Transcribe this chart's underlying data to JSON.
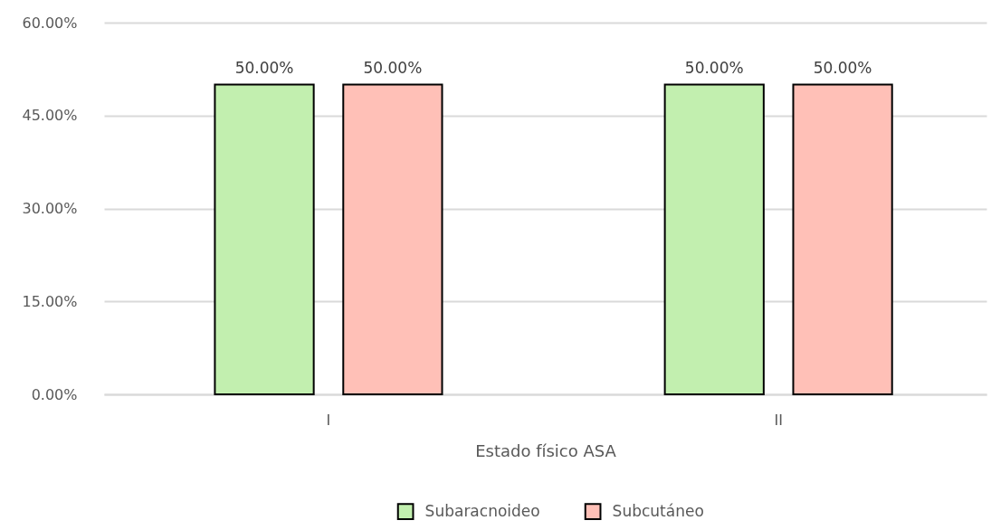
{
  "chart_data": {
    "type": "bar",
    "xlabel": "Estado físico ASA",
    "categories": [
      "I",
      "II"
    ],
    "series": [
      {
        "name": "Subaracnoideo",
        "color": "#c2efaf",
        "values": [
          50,
          50
        ],
        "value_labels": [
          "50.00%",
          "50.00%"
        ]
      },
      {
        "name": "Subcutáneo",
        "color": "#ffc0b7",
        "values": [
          50,
          50
        ],
        "value_labels": [
          "50.00%",
          "50.00%"
        ]
      }
    ],
    "ylim": [
      0,
      60
    ],
    "yticks": [
      {
        "value": 0,
        "label": "0.00%"
      },
      {
        "value": 15,
        "label": "15.00%"
      },
      {
        "value": 30,
        "label": "30.00%"
      },
      {
        "value": 45,
        "label": "45.00%"
      },
      {
        "value": 60,
        "label": "60.00%"
      }
    ],
    "grid": "y",
    "legend": "bottom"
  }
}
